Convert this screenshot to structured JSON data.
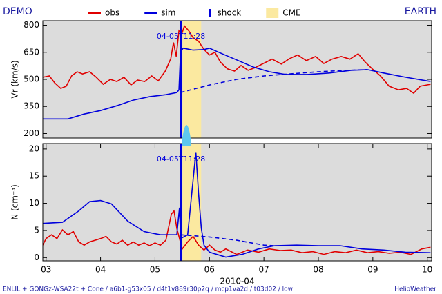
{
  "header": {
    "left": "DEMO",
    "right": "EARTH"
  },
  "footer": {
    "left": "ENLIL + GONGz-WSA22t + Cone / a6b1-g53x05 / d4t1v889r30p2q / mcp1va2d / t03d02 / low",
    "right": "HelioWeather"
  },
  "chart_data": [
    {
      "type": "line",
      "ylabel": "Vr (km/s)",
      "xlim": [
        2.94,
        10.08
      ],
      "ylim": [
        175,
        825
      ],
      "yticks": [
        200,
        350,
        500,
        650,
        800
      ],
      "shock": {
        "name": "shock",
        "x": 5.478,
        "label": "04-05T11:28",
        "color": "#0000dd"
      },
      "cme": {
        "name": "CME",
        "x": [
          5.506,
          5.848
        ],
        "color": "#fbe9a0"
      },
      "series": [
        {
          "name": "obs",
          "color": "#e00000",
          "x": [
            2.94,
            3.06,
            3.16,
            3.27,
            3.37,
            3.47,
            3.57,
            3.67,
            3.8,
            3.92,
            4.05,
            4.18,
            4.3,
            4.43,
            4.56,
            4.68,
            4.81,
            4.94,
            5.06,
            5.19,
            5.29,
            5.34,
            5.39,
            5.44,
            5.49,
            5.54,
            5.62,
            5.7,
            5.8,
            5.9,
            6.0,
            6.1,
            6.2,
            6.33,
            6.46,
            6.58,
            6.71,
            6.84,
            6.99,
            7.15,
            7.32,
            7.47,
            7.62,
            7.78,
            7.95,
            8.1,
            8.25,
            8.42,
            8.58,
            8.73,
            8.86,
            8.99,
            9.14,
            9.3,
            9.47,
            9.62,
            9.75,
            9.87,
            10.06
          ],
          "values": [
            512,
            519,
            480,
            450,
            462,
            520,
            542,
            530,
            542,
            512,
            473,
            500,
            488,
            512,
            469,
            496,
            488,
            519,
            492,
            546,
            615,
            704,
            627,
            769,
            750,
            796,
            769,
            731,
            711,
            665,
            635,
            650,
            596,
            558,
            546,
            577,
            550,
            565,
            588,
            612,
            585,
            615,
            635,
            604,
            627,
            588,
            612,
            627,
            612,
            642,
            596,
            558,
            519,
            462,
            442,
            450,
            423,
            462,
            473
          ]
        },
        {
          "name": "sim",
          "color": "#0000dd",
          "x": [
            2.94,
            3.4,
            3.7,
            4.0,
            4.3,
            4.6,
            4.9,
            5.2,
            5.4,
            5.44,
            5.47,
            5.52,
            5.7,
            5.9,
            6.0,
            6.2,
            6.5,
            6.8,
            7.1,
            7.4,
            7.8,
            8.2,
            8.6,
            8.9,
            9.2,
            9.6,
            10.06
          ],
          "values": [
            281,
            281,
            308,
            327,
            354,
            385,
            404,
            415,
            427,
            442,
            654,
            673,
            662,
            665,
            673,
            646,
            608,
            569,
            542,
            527,
            527,
            535,
            550,
            554,
            535,
            512,
            488
          ]
        },
        {
          "color": "#0000dd",
          "dash": true,
          "x": [
            5.47,
            6.0,
            6.5,
            7.0,
            7.5,
            8.0,
            8.5,
            8.9
          ],
          "values": [
            427,
            469,
            500,
            519,
            531,
            542,
            550,
            554
          ]
        }
      ]
    },
    {
      "type": "line",
      "ylabel": "N (cm⁻³)",
      "xlabel": "2010-04",
      "xlim": [
        2.94,
        10.08
      ],
      "ylim": [
        -0.6,
        21
      ],
      "yticks": [
        0,
        5,
        10,
        15,
        20
      ],
      "xticks": [
        {
          "value": 3,
          "label": "03"
        },
        {
          "value": 4,
          "label": "04"
        },
        {
          "value": 5,
          "label": "05"
        },
        {
          "value": 6,
          "label": "06"
        },
        {
          "value": 7,
          "label": "07"
        },
        {
          "value": 8,
          "label": "08"
        },
        {
          "value": 9,
          "label": "09"
        },
        {
          "value": 10,
          "label": "10"
        }
      ],
      "shock": {
        "x": 5.478,
        "label": "04-05T11:28",
        "color": "#0000dd"
      },
      "cme": {
        "x": [
          5.506,
          5.848
        ],
        "color": "#fbe9a0"
      },
      "series": [
        {
          "color": "#e00000",
          "x": [
            2.94,
            3.0,
            3.1,
            3.2,
            3.3,
            3.4,
            3.5,
            3.6,
            3.7,
            3.8,
            3.9,
            4.0,
            4.1,
            4.2,
            4.3,
            4.4,
            4.5,
            4.6,
            4.7,
            4.8,
            4.9,
            5.0,
            5.1,
            5.2,
            5.3,
            5.35,
            5.4,
            5.45,
            5.5,
            5.6,
            5.7,
            5.8,
            5.9,
            6.0,
            6.1,
            6.2,
            6.3,
            6.5,
            6.7,
            6.9,
            7.1,
            7.3,
            7.5,
            7.7,
            7.9,
            8.1,
            8.3,
            8.5,
            8.7,
            8.9,
            9.1,
            9.3,
            9.5,
            9.7,
            9.9,
            10.06
          ],
          "values": [
            2.3,
            3.5,
            4.2,
            3.5,
            5.1,
            4.2,
            4.8,
            2.9,
            2.3,
            2.9,
            3.2,
            3.5,
            3.9,
            2.9,
            2.5,
            3.2,
            2.3,
            2.9,
            2.3,
            2.7,
            2.2,
            2.7,
            2.3,
            3.2,
            8.0,
            8.6,
            5.4,
            3.5,
            1.6,
            2.9,
            3.9,
            2.3,
            1.4,
            2.3,
            1.4,
            1.0,
            1.6,
            0.6,
            1.4,
            1.0,
            1.6,
            1.3,
            1.4,
            0.9,
            1.1,
            0.6,
            1.1,
            0.9,
            1.4,
            0.9,
            1.1,
            0.8,
            1.0,
            0.6,
            1.6,
            1.9
          ]
        },
        {
          "color": "#0000dd",
          "x": [
            2.94,
            3.3,
            3.6,
            3.8,
            4.0,
            4.2,
            4.5,
            4.8,
            5.1,
            5.4,
            5.45,
            5.47,
            5.6,
            5.7,
            5.75,
            5.8,
            5.85,
            5.9,
            6.0,
            6.3,
            6.6,
            6.9,
            7.2,
            7.6,
            8.0,
            8.4,
            8.8,
            9.2,
            9.6,
            10.06
          ],
          "values": [
            6.3,
            6.5,
            8.6,
            10.3,
            10.5,
            9.9,
            6.7,
            4.8,
            4.2,
            4.2,
            9.2,
            3.5,
            4.2,
            14.3,
            19.4,
            11.8,
            5.4,
            2.3,
            1.0,
            0.1,
            0.6,
            1.6,
            2.2,
            2.3,
            2.2,
            2.2,
            1.6,
            1.4,
            1.0,
            0.9
          ]
        },
        {
          "color": "#0000dd",
          "dash": true,
          "x": [
            5.47,
            6.0,
            6.5,
            7.0,
            7.2
          ],
          "values": [
            4.2,
            3.8,
            3.2,
            2.3,
            2.2
          ]
        }
      ]
    }
  ]
}
